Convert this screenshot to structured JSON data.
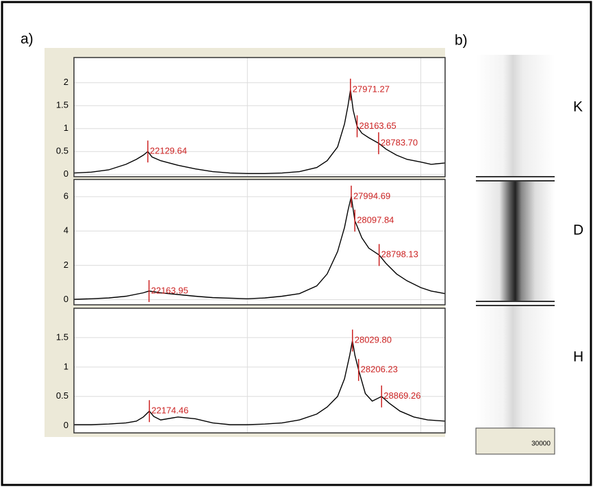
{
  "panel_labels": [
    "a)",
    "b)"
  ],
  "chart_data": [
    {
      "type": "line",
      "xlim": [
        20000,
        30700
      ],
      "xticks": [
        25000,
        30000
      ],
      "ylim": [
        -0.05,
        2.55
      ],
      "yticks": [
        0,
        0.5,
        1,
        1.5,
        2
      ],
      "grid": true,
      "color": "#000000",
      "peak_color": "#cc2222",
      "x": [
        20000,
        20500,
        21000,
        21500,
        21800,
        22000,
        22129.64,
        22250,
        22500,
        23000,
        23500,
        24000,
        24500,
        25000,
        25500,
        26000,
        26500,
        27000,
        27300,
        27600,
        27800,
        27900,
        27971.27,
        28050,
        28163.65,
        28300,
        28500,
        28783.7,
        29000,
        29300,
        29600,
        30000,
        30300,
        30700
      ],
      "values": [
        0.03,
        0.05,
        0.1,
        0.22,
        0.33,
        0.42,
        0.5,
        0.38,
        0.3,
        0.2,
        0.12,
        0.06,
        0.03,
        0.02,
        0.02,
        0.03,
        0.06,
        0.15,
        0.3,
        0.6,
        1.1,
        1.5,
        1.85,
        1.4,
        1.05,
        0.9,
        0.8,
        0.68,
        0.55,
        0.42,
        0.33,
        0.27,
        0.22,
        0.25
      ],
      "peaks": [
        {
          "x": 22129.64,
          "y": 0.5,
          "label": "22129.64"
        },
        {
          "x": 27971.27,
          "y": 1.85,
          "label": "27971.27"
        },
        {
          "x": 28163.65,
          "y": 1.05,
          "label": "28163.65"
        },
        {
          "x": 28783.7,
          "y": 0.68,
          "label": "28783.70"
        }
      ]
    },
    {
      "type": "line",
      "xlim": [
        20000,
        30700
      ],
      "xticks": [
        25000,
        30000
      ],
      "ylim": [
        -0.3,
        7
      ],
      "yticks": [
        0,
        2,
        4,
        6
      ],
      "grid": true,
      "color": "#000000",
      "peak_color": "#cc2222",
      "x": [
        20000,
        20500,
        21000,
        21500,
        22000,
        22163.95,
        22500,
        23000,
        23500,
        24000,
        25000,
        25500,
        26000,
        26500,
        27000,
        27300,
        27600,
        27800,
        27900,
        27994.69,
        28097.84,
        28300,
        28500,
        28798.13,
        29000,
        29300,
        29600,
        30000,
        30300,
        30700
      ],
      "values": [
        0.02,
        0.05,
        0.1,
        0.2,
        0.4,
        0.5,
        0.4,
        0.3,
        0.2,
        0.12,
        0.05,
        0.1,
        0.2,
        0.35,
        0.8,
        1.5,
        2.8,
        4.2,
        5.2,
        6.0,
        4.6,
        3.6,
        3.0,
        2.6,
        2.1,
        1.5,
        1.1,
        0.7,
        0.5,
        0.35
      ],
      "peaks": [
        {
          "x": 22163.95,
          "y": 0.5,
          "label": "22163.95"
        },
        {
          "x": 27994.69,
          "y": 6.0,
          "label": "27994.69"
        },
        {
          "x": 28097.84,
          "y": 4.6,
          "label": "28097.84"
        },
        {
          "x": 28798.13,
          "y": 2.6,
          "label": "28798.13"
        }
      ]
    },
    {
      "type": "line",
      "xlim": [
        20000,
        30700
      ],
      "xticks": [
        25000,
        30000
      ],
      "ylim": [
        -0.12,
        2
      ],
      "yticks": [
        0,
        0.5,
        1,
        1.5
      ],
      "grid": true,
      "color": "#000000",
      "peak_color": "#cc2222",
      "x": [
        20000,
        20500,
        21000,
        21500,
        21800,
        22000,
        22174.46,
        22300,
        22500,
        23000,
        23500,
        24000,
        24500,
        25000,
        25500,
        26000,
        26500,
        27000,
        27300,
        27600,
        27800,
        27950,
        28029.8,
        28100,
        28206.23,
        28400,
        28600,
        28869.26,
        29100,
        29400,
        29800,
        30200,
        30700
      ],
      "values": [
        0.02,
        0.02,
        0.03,
        0.05,
        0.08,
        0.15,
        0.25,
        0.16,
        0.1,
        0.15,
        0.12,
        0.05,
        0.02,
        0.02,
        0.03,
        0.05,
        0.1,
        0.2,
        0.32,
        0.5,
        0.8,
        1.2,
        1.45,
        1.2,
        0.95,
        0.55,
        0.42,
        0.5,
        0.38,
        0.25,
        0.15,
        0.1,
        0.08
      ],
      "peaks": [
        {
          "x": 22174.46,
          "y": 0.25,
          "label": "22174.46"
        },
        {
          "x": 28029.8,
          "y": 1.45,
          "label": "28029.80"
        },
        {
          "x": 28206.23,
          "y": 0.95,
          "label": "28206.23"
        },
        {
          "x": 28869.26,
          "y": 0.5,
          "label": "28869.26"
        }
      ]
    }
  ],
  "gel": {
    "lanes": [
      "K",
      "D",
      "H"
    ],
    "scale_label": 30000
  }
}
